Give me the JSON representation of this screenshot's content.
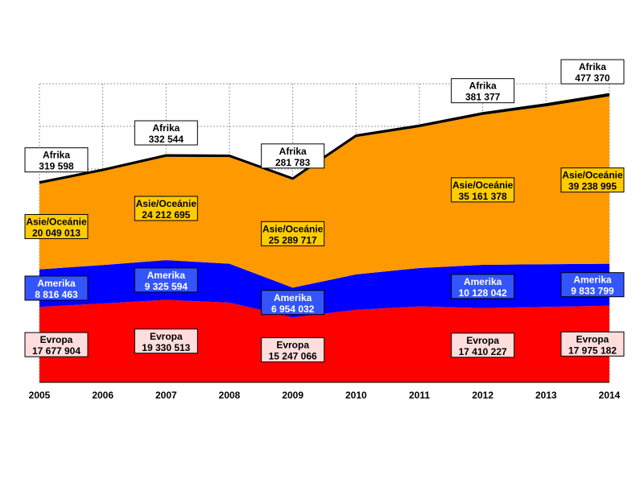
{
  "chart_data": {
    "type": "area",
    "stacked": true,
    "x": [
      "2005",
      "2006",
      "2007",
      "2008",
      "2009",
      "2010",
      "2011",
      "2012",
      "2013",
      "2014"
    ],
    "series": [
      {
        "name": "Evropa",
        "color": "#ff0000",
        "label_color": "#ffffff",
        "values": [
          17677904,
          18500000,
          19330513,
          18700000,
          15247066,
          17000000,
          17800000,
          17410227,
          17700000,
          17975182
        ]
      },
      {
        "name": "Amerika",
        "color": "#0000ff",
        "label_color": "#3355ff",
        "values": [
          8816463,
          9000000,
          9325594,
          9100000,
          6954032,
          8300000,
          9000000,
          10128042,
          10000000,
          9833799
        ]
      },
      {
        "name": "Asie/Oceánie",
        "color": "#ff9900",
        "label_color": "#ffcc00",
        "values": [
          20049013,
          22000000,
          24212695,
          25000000,
          25289717,
          32200000,
          33000000,
          35161378,
          37000000,
          39238995
        ]
      },
      {
        "name": "Afrika",
        "color": "#000000",
        "label_color": "#ffffff",
        "values": [
          319598,
          320000,
          332544,
          320000,
          281783,
          340000,
          360000,
          381377,
          450000,
          477370
        ]
      }
    ],
    "data_labels": [
      {
        "series": 0,
        "index": 0,
        "name": "Evropa",
        "value": "17 677 904"
      },
      {
        "series": 0,
        "index": 2,
        "name": "Evropa",
        "value": "19 330 513"
      },
      {
        "series": 0,
        "index": 4,
        "name": "Evropa",
        "value": "15 247 066"
      },
      {
        "series": 0,
        "index": 7,
        "name": "Evropa",
        "value": "17 410 227"
      },
      {
        "series": 0,
        "index": 9,
        "name": "Evropa",
        "value": "17 975 182"
      },
      {
        "series": 1,
        "index": 0,
        "name": "Amerika",
        "value": "8 816 463"
      },
      {
        "series": 1,
        "index": 2,
        "name": "Amerika",
        "value": "9 325 594"
      },
      {
        "series": 1,
        "index": 4,
        "name": "Amerika",
        "value": "6 954 032"
      },
      {
        "series": 1,
        "index": 7,
        "name": "Amerika",
        "value": "10 128 042"
      },
      {
        "series": 1,
        "index": 9,
        "name": "Amerika",
        "value": "9 833 799"
      },
      {
        "series": 2,
        "index": 0,
        "name": "Asie/Oceánie",
        "value": "20 049 013"
      },
      {
        "series": 2,
        "index": 2,
        "name": "Asie/Oceánie",
        "value": "24 212 695"
      },
      {
        "series": 2,
        "index": 4,
        "name": "Asie/Oceánie",
        "value": "25 289 717"
      },
      {
        "series": 2,
        "index": 7,
        "name": "Asie/Oceánie",
        "value": "35 161 378"
      },
      {
        "series": 2,
        "index": 9,
        "name": "Asie/Oceánie",
        "value": "39 238 995"
      },
      {
        "series": 3,
        "index": 0,
        "name": "Afrika",
        "value": "319 598"
      },
      {
        "series": 3,
        "index": 2,
        "name": "Afrika",
        "value": "332 544"
      },
      {
        "series": 3,
        "index": 4,
        "name": "Afrika",
        "value": "281 783"
      },
      {
        "series": 3,
        "index": 7,
        "name": "Afrika",
        "value": "381 377"
      },
      {
        "series": 3,
        "index": 9,
        "name": "Afrika",
        "value": "477 370"
      }
    ],
    "ylim": [
      0,
      70000000
    ],
    "grid": true,
    "legend": "none",
    "title": "",
    "xlabel": "",
    "ylabel": ""
  }
}
